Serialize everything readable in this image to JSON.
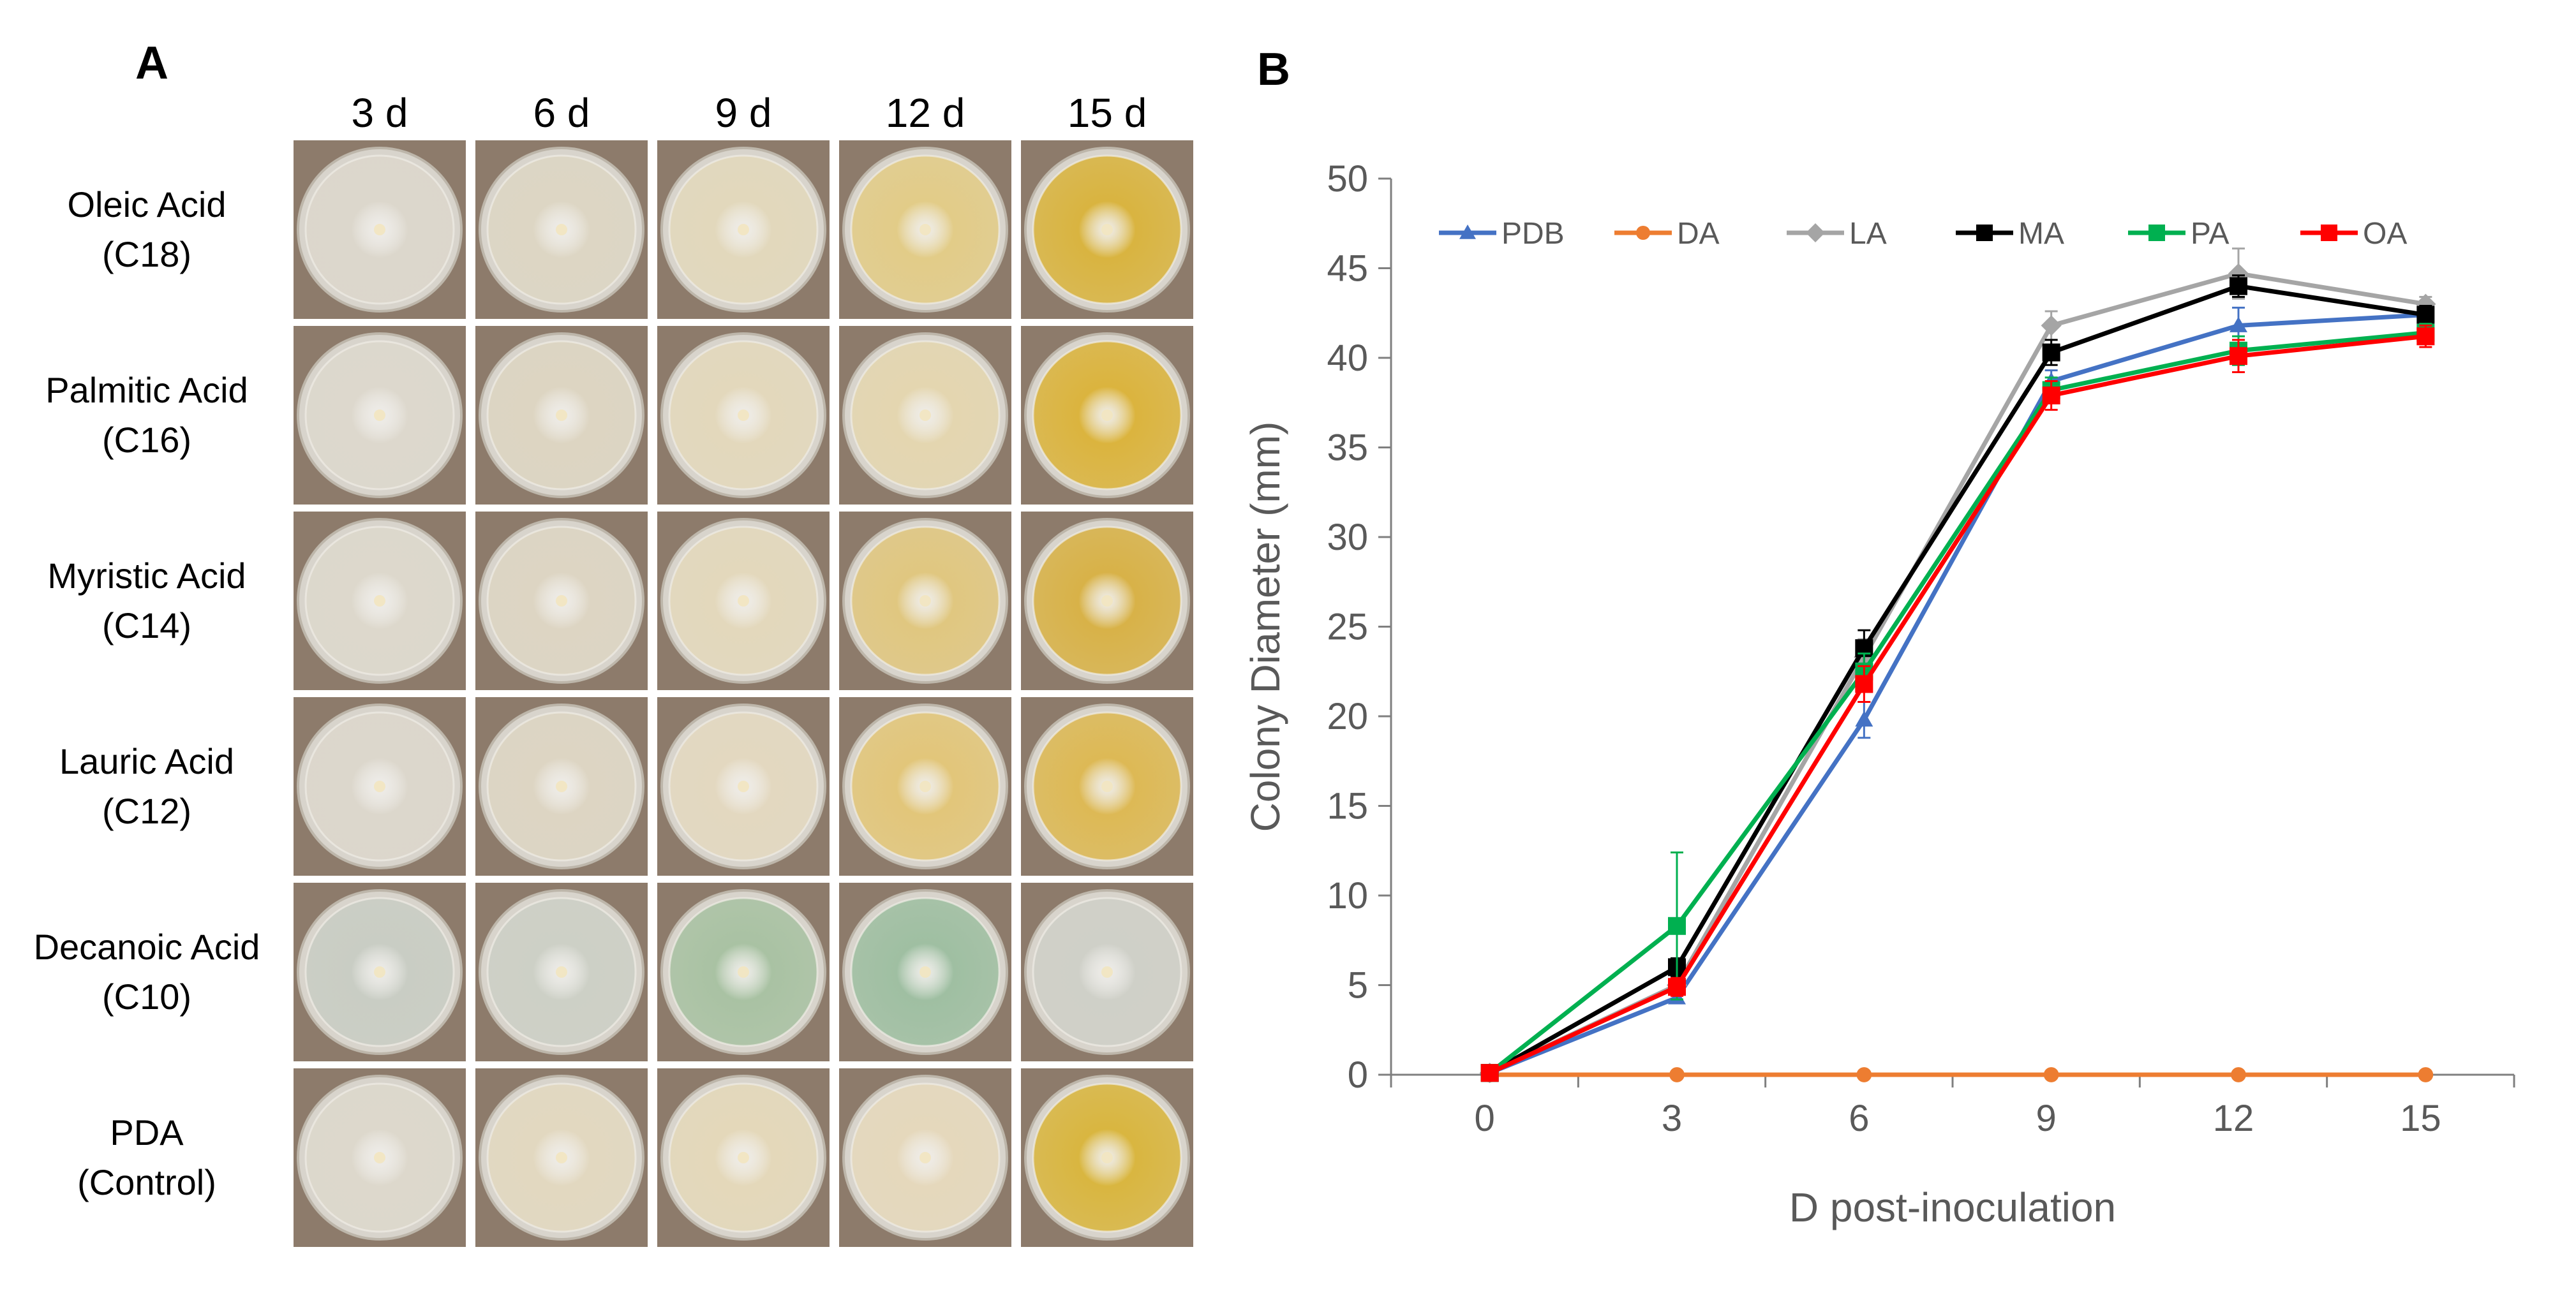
{
  "panel_a": {
    "label": "A",
    "columns": [
      "3 d",
      "6 d",
      "9 d",
      "12 d",
      "15 d"
    ],
    "rows": [
      {
        "name": "Oleic Acid",
        "code": "(C18)",
        "plate_colors": [
          "#dcd7cc",
          "#ddd6c4",
          "#e2d8bc",
          "#e2cc88",
          "#d9b440"
        ]
      },
      {
        "name": "Palmitic Acid",
        "code": "(C16)",
        "plate_colors": [
          "#ddd8cd",
          "#ddd5c2",
          "#e3d8bc",
          "#e4d6b0",
          "#dbb43e"
        ]
      },
      {
        "name": "Myristic Acid",
        "code": "(C14)",
        "plate_colors": [
          "#ddd8cc",
          "#ddd5c3",
          "#e3d8bc",
          "#e0c780",
          "#d8b248"
        ]
      },
      {
        "name": "Lauric Acid",
        "code": "(C12)",
        "plate_colors": [
          "#dcd7cc",
          "#ddd5c3",
          "#e3d8c0",
          "#e2c67a",
          "#ddb955"
        ]
      },
      {
        "name": "Decanoic Acid",
        "code": "(C10)",
        "plate_colors": [
          "#c9cdc4",
          "#cdd0c6",
          "#a9c2a3",
          "#9fbfa2",
          "#cfd0c8"
        ]
      },
      {
        "name": "PDA",
        "code": "(Control)",
        "plate_colors": [
          "#ddd8cc",
          "#e2d8c0",
          "#e4d8ba",
          "#e5d8bc",
          "#d9b640"
        ]
      }
    ]
  },
  "panel_b": {
    "label": "B",
    "chart_data": {
      "type": "line",
      "title": "",
      "xlabel": "D post-inoculation",
      "ylabel": "Colony Diameter (mm)",
      "x": [
        0,
        3,
        6,
        9,
        12,
        15
      ],
      "xlim": [
        -1.5,
        16.5
      ],
      "ylim": [
        0,
        50
      ],
      "xticks": [
        "0",
        "3",
        "6",
        "9",
        "12",
        "15"
      ],
      "yticks": [
        "0",
        "5",
        "10",
        "15",
        "20",
        "25",
        "30",
        "35",
        "40",
        "45",
        "50"
      ],
      "grid": false,
      "legend_position": "top",
      "series": [
        {
          "name": "PDB",
          "color": "#4472c4",
          "marker": "triangle",
          "values": [
            0.1,
            4.3,
            19.8,
            38.7,
            41.8,
            42.4
          ],
          "errors": [
            0,
            0.3,
            1.0,
            0.6,
            1.0,
            0.5
          ]
        },
        {
          "name": "DA",
          "color": "#ed7d31",
          "marker": "circle",
          "values": [
            0,
            0,
            0,
            0,
            0,
            0
          ],
          "errors": [
            0,
            0,
            0,
            0,
            0,
            0
          ]
        },
        {
          "name": "LA",
          "color": "#a5a5a5",
          "marker": "diamond",
          "values": [
            0.1,
            5.0,
            23.3,
            41.8,
            44.7,
            43.0
          ],
          "errors": [
            0,
            0.5,
            1.0,
            0.8,
            1.4,
            0.4
          ]
        },
        {
          "name": "MA",
          "color": "#000000",
          "marker": "square",
          "values": [
            0.1,
            6.0,
            23.8,
            40.3,
            44.0,
            42.4
          ],
          "errors": [
            0,
            0.5,
            1.0,
            0.7,
            0.6,
            0.5
          ]
        },
        {
          "name": "PA",
          "color": "#00b050",
          "marker": "square",
          "values": [
            0.1,
            8.3,
            22.5,
            38.2,
            40.4,
            41.4
          ],
          "errors": [
            0,
            4.1,
            1.0,
            0.7,
            0.8,
            0.5
          ]
        },
        {
          "name": "OA",
          "color": "#ff0000",
          "marker": "square",
          "values": [
            0.1,
            4.9,
            21.8,
            37.9,
            40.1,
            41.2
          ],
          "errors": [
            0,
            0.5,
            1.0,
            0.8,
            0.9,
            0.6
          ]
        }
      ]
    }
  }
}
